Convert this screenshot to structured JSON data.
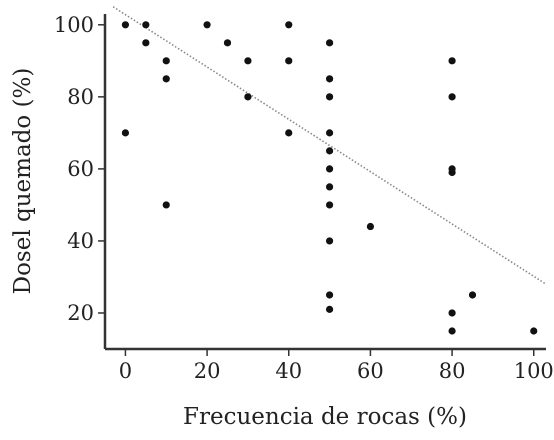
{
  "chart_data": {
    "type": "scatter",
    "title": "",
    "xlabel": "Frecuencia de rocas (%)",
    "ylabel": "Dosel quemado (%)",
    "xlim": [
      -5,
      103
    ],
    "ylim": [
      10,
      103
    ],
    "x_ticks": [
      0,
      20,
      40,
      60,
      80,
      100
    ],
    "y_ticks": [
      20,
      40,
      60,
      80,
      100
    ],
    "x_tick_labels": [
      "0",
      "20",
      "40",
      "60",
      "80",
      "100"
    ],
    "y_tick_labels": [
      "20",
      "40",
      "60",
      "80",
      "100"
    ],
    "grid": false,
    "legend": "none",
    "point_color": "#111111",
    "trendline_color": "#888888",
    "trendline_style": "dotted",
    "trendline": {
      "x": [
        -3,
        103
      ],
      "y": [
        105,
        28
      ]
    },
    "points": [
      {
        "x": 0,
        "y": 100
      },
      {
        "x": 0,
        "y": 70
      },
      {
        "x": 5,
        "y": 100
      },
      {
        "x": 5,
        "y": 95
      },
      {
        "x": 10,
        "y": 90
      },
      {
        "x": 10,
        "y": 85
      },
      {
        "x": 10,
        "y": 50
      },
      {
        "x": 20,
        "y": 100
      },
      {
        "x": 25,
        "y": 95
      },
      {
        "x": 30,
        "y": 90
      },
      {
        "x": 30,
        "y": 80
      },
      {
        "x": 40,
        "y": 100
      },
      {
        "x": 40,
        "y": 90
      },
      {
        "x": 40,
        "y": 70
      },
      {
        "x": 50,
        "y": 95
      },
      {
        "x": 50,
        "y": 85
      },
      {
        "x": 50,
        "y": 80
      },
      {
        "x": 50,
        "y": 70
      },
      {
        "x": 50,
        "y": 65
      },
      {
        "x": 50,
        "y": 60
      },
      {
        "x": 50,
        "y": 55
      },
      {
        "x": 50,
        "y": 50
      },
      {
        "x": 50,
        "y": 40
      },
      {
        "x": 50,
        "y": 25
      },
      {
        "x": 50,
        "y": 21
      },
      {
        "x": 60,
        "y": 44
      },
      {
        "x": 80,
        "y": 90
      },
      {
        "x": 80,
        "y": 80
      },
      {
        "x": 80,
        "y": 60
      },
      {
        "x": 80,
        "y": 59
      },
      {
        "x": 80,
        "y": 20
      },
      {
        "x": 80,
        "y": 15
      },
      {
        "x": 85,
        "y": 25
      },
      {
        "x": 100,
        "y": 15
      }
    ]
  }
}
